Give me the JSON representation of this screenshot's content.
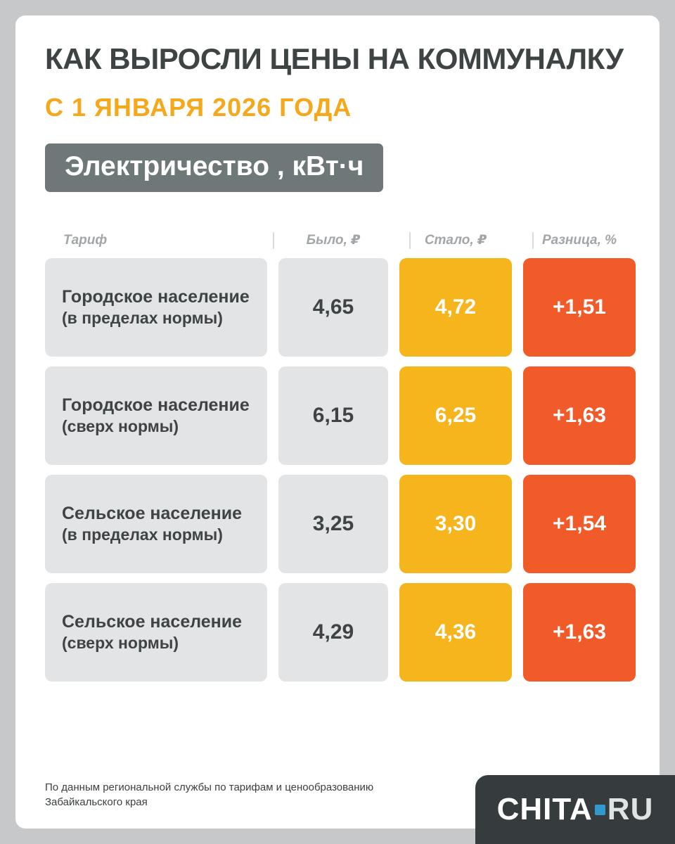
{
  "title": "КАК ВЫРОСЛИ ЦЕНЫ НА КОММУНАЛКУ",
  "subtitle": "С 1 ЯНВАРЯ 2026 ГОДА",
  "section_badge": "Электричество , кВт·ч",
  "table": {
    "headers": {
      "tariff": "Тариф",
      "was": "Было, ₽",
      "now": "Стало, ₽",
      "diff": "Разница, %"
    },
    "rows": [
      {
        "name": "Городское население",
        "note": "(в пределах нормы)",
        "was": "4,65",
        "now": "4,72",
        "diff": "+1,51"
      },
      {
        "name": "Городское население",
        "note": "(сверх нормы)",
        "was": "6,15",
        "now": "6,25",
        "diff": "+1,63"
      },
      {
        "name": "Сельское население",
        "note": "(в пределах нормы)",
        "was": "3,25",
        "now": "3,30",
        "diff": "+1,54"
      },
      {
        "name": "Сельское население",
        "note": "(сверх нормы)",
        "was": "4,29",
        "now": "4,36",
        "diff": "+1,63"
      }
    ]
  },
  "footer": {
    "source_line1": "По данным региональной службы по тарифам и ценообразованию",
    "source_line2": "Забайкальского края"
  },
  "logo": {
    "part1": "CHITA",
    "part2": "RU"
  },
  "colors": {
    "subtitle_orange": "#f5a81c",
    "badge_gray": "#6e7878",
    "cell_gray": "#e3e4e6",
    "accent_yellow": "#f6b51d",
    "accent_orange": "#f15a29",
    "logo_dark": "#363c3d",
    "logo_blue": "#2f9ad0",
    "text_dark": "#3e4344"
  },
  "chart_data": {
    "type": "table",
    "title": "Как выросли цены на коммуналку с 1 января 2026 года — Электричество, кВт·ч",
    "columns": [
      "Тариф",
      "Было, ₽",
      "Стало, ₽",
      "Разница, %"
    ],
    "rows": [
      [
        "Городское население (в пределах нормы)",
        4.65,
        4.72,
        1.51
      ],
      [
        "Городское население (сверх нормы)",
        6.15,
        6.25,
        1.63
      ],
      [
        "Сельское население (в пределах нормы)",
        3.25,
        3.3,
        1.54
      ],
      [
        "Сельское население (сверх нормы)",
        4.29,
        4.36,
        1.63
      ]
    ],
    "source": "Региональная служба по тарифам и ценообразованию Забайкальского края"
  }
}
